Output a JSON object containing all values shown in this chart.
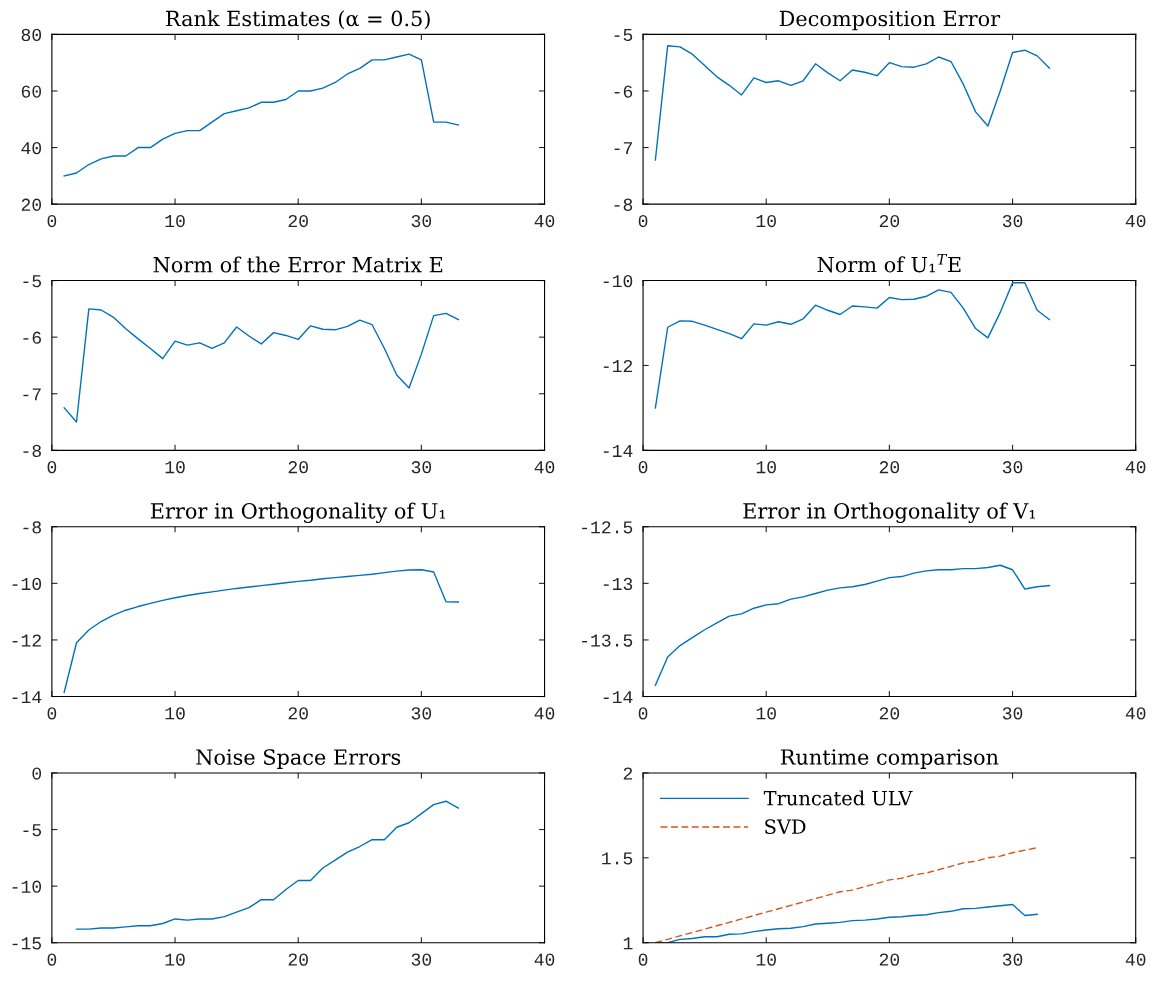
{
  "chart_data": [
    {
      "type": "line",
      "title": "Rank Estimates (α = 0.5)",
      "x": [
        1,
        2,
        3,
        4,
        5,
        6,
        7,
        8,
        9,
        10,
        11,
        12,
        13,
        14,
        15,
        16,
        17,
        18,
        19,
        20,
        21,
        22,
        23,
        24,
        25,
        26,
        27,
        28,
        29,
        30,
        31,
        32,
        33
      ],
      "xlim": [
        0,
        40
      ],
      "xticks": [
        0,
        10,
        20,
        30,
        40
      ],
      "ylim": [
        20,
        80
      ],
      "yticks": [
        20,
        40,
        60,
        80
      ],
      "grid": false,
      "series": [
        {
          "color": "#0072bd",
          "values": [
            30,
            31,
            34,
            36,
            37,
            37,
            40,
            40,
            43,
            45,
            46,
            46,
            49,
            52,
            53,
            54,
            56,
            56,
            57,
            60,
            60,
            61,
            63,
            66,
            68,
            71,
            71,
            72,
            73,
            71,
            49,
            49,
            48
          ]
        }
      ]
    },
    {
      "type": "line",
      "title": "Decomposition Error",
      "x": [
        1,
        2,
        3,
        4,
        5,
        6,
        7,
        8,
        9,
        10,
        11,
        12,
        13,
        14,
        15,
        16,
        17,
        18,
        19,
        20,
        21,
        22,
        23,
        24,
        25,
        26,
        27,
        28,
        29,
        30,
        31,
        32,
        33
      ],
      "xlim": [
        0,
        40
      ],
      "xticks": [
        0,
        10,
        20,
        30,
        40
      ],
      "ylim": [
        -8,
        -5
      ],
      "yticks": [
        -8,
        -7,
        -6,
        -5
      ],
      "grid": false,
      "series": [
        {
          "color": "#0072bd",
          "values": [
            -7.22,
            -5.2,
            -5.22,
            -5.35,
            -5.55,
            -5.75,
            -5.9,
            -6.07,
            -5.77,
            -5.85,
            -5.82,
            -5.9,
            -5.82,
            -5.52,
            -5.68,
            -5.82,
            -5.63,
            -5.67,
            -5.73,
            -5.5,
            -5.57,
            -5.58,
            -5.52,
            -5.4,
            -5.48,
            -5.88,
            -6.37,
            -6.62,
            -6.0,
            -5.32,
            -5.28,
            -5.38,
            -5.6
          ]
        }
      ]
    },
    {
      "type": "line",
      "title": "Norm of the Error Matrix E",
      "x": [
        1,
        2,
        3,
        4,
        5,
        6,
        7,
        8,
        9,
        10,
        11,
        12,
        13,
        14,
        15,
        16,
        17,
        18,
        19,
        20,
        21,
        22,
        23,
        24,
        25,
        26,
        27,
        28,
        29,
        30,
        31,
        32,
        33
      ],
      "xlim": [
        0,
        40
      ],
      "xticks": [
        0,
        10,
        20,
        30,
        40
      ],
      "ylim": [
        -8,
        -5
      ],
      "yticks": [
        -8,
        -7,
        -6,
        -5
      ],
      "grid": false,
      "series": [
        {
          "color": "#0072bd",
          "values": [
            -7.25,
            -7.5,
            -5.5,
            -5.52,
            -5.65,
            -5.85,
            -6.03,
            -6.2,
            -6.38,
            -6.07,
            -6.14,
            -6.1,
            -6.2,
            -6.1,
            -5.82,
            -5.98,
            -6.12,
            -5.92,
            -5.97,
            -6.04,
            -5.8,
            -5.86,
            -5.87,
            -5.81,
            -5.7,
            -5.78,
            -6.2,
            -6.67,
            -6.9,
            -6.3,
            -5.62,
            -5.58,
            -5.69
          ]
        }
      ]
    },
    {
      "type": "line",
      "title": "Norm of U₁$^{T}$E",
      "x": [
        1,
        2,
        3,
        4,
        5,
        6,
        7,
        8,
        9,
        10,
        11,
        12,
        13,
        14,
        15,
        16,
        17,
        18,
        19,
        20,
        21,
        22,
        23,
        24,
        25,
        26,
        27,
        28,
        29,
        30,
        31,
        32,
        33
      ],
      "xlim": [
        0,
        40
      ],
      "xticks": [
        0,
        10,
        20,
        30,
        40
      ],
      "ylim": [
        -14,
        -10
      ],
      "yticks": [
        -14,
        -12,
        -10
      ],
      "grid": false,
      "series": [
        {
          "color": "#0072bd",
          "values": [
            -13.0,
            -11.1,
            -10.95,
            -10.96,
            -11.05,
            -11.15,
            -11.25,
            -11.37,
            -11.02,
            -11.05,
            -10.97,
            -11.03,
            -10.9,
            -10.58,
            -10.7,
            -10.8,
            -10.6,
            -10.62,
            -10.65,
            -10.4,
            -10.45,
            -10.44,
            -10.37,
            -10.22,
            -10.28,
            -10.65,
            -11.13,
            -11.35,
            -10.75,
            -10.05,
            -10.05,
            -10.7,
            -10.92
          ]
        }
      ]
    },
    {
      "type": "line",
      "title": "Error in Orthogonality of U₁",
      "x": [
        1,
        2,
        3,
        4,
        5,
        6,
        7,
        8,
        9,
        10,
        11,
        12,
        13,
        14,
        15,
        16,
        17,
        18,
        19,
        20,
        21,
        22,
        23,
        24,
        25,
        26,
        27,
        28,
        29,
        30,
        31,
        32,
        33
      ],
      "xlim": [
        0,
        40
      ],
      "xticks": [
        0,
        10,
        20,
        30,
        40
      ],
      "ylim": [
        -14,
        -8
      ],
      "yticks": [
        -14,
        -12,
        -10,
        -8
      ],
      "grid": false,
      "series": [
        {
          "color": "#0072bd",
          "values": [
            -13.85,
            -12.1,
            -11.65,
            -11.35,
            -11.12,
            -10.95,
            -10.82,
            -10.71,
            -10.6,
            -10.51,
            -10.43,
            -10.36,
            -10.3,
            -10.24,
            -10.18,
            -10.13,
            -10.08,
            -10.03,
            -9.98,
            -9.93,
            -9.89,
            -9.84,
            -9.8,
            -9.76,
            -9.72,
            -9.68,
            -9.62,
            -9.57,
            -9.53,
            -9.52,
            -9.6,
            -10.65,
            -10.66
          ]
        }
      ]
    },
    {
      "type": "line",
      "title": "Error in Orthogonality of V₁",
      "x": [
        1,
        2,
        3,
        4,
        5,
        6,
        7,
        8,
        9,
        10,
        11,
        12,
        13,
        14,
        15,
        16,
        17,
        18,
        19,
        20,
        21,
        22,
        23,
        24,
        25,
        26,
        27,
        28,
        29,
        30,
        31,
        32,
        33
      ],
      "xlim": [
        0,
        40
      ],
      "xticks": [
        0,
        10,
        20,
        30,
        40
      ],
      "ylim": [
        -14,
        -12.5
      ],
      "yticks": [
        -14,
        -13.5,
        -13,
        -12.5
      ],
      "grid": false,
      "series": [
        {
          "color": "#0072bd",
          "values": [
            -13.9,
            -13.65,
            -13.55,
            -13.48,
            -13.41,
            -13.35,
            -13.29,
            -13.27,
            -13.22,
            -13.19,
            -13.18,
            -13.14,
            -13.12,
            -13.09,
            -13.06,
            -13.04,
            -13.03,
            -13.01,
            -12.98,
            -12.95,
            -12.94,
            -12.91,
            -12.89,
            -12.88,
            -12.88,
            -12.87,
            -12.87,
            -12.86,
            -12.84,
            -12.88,
            -13.05,
            -13.03,
            -13.02
          ]
        }
      ]
    },
    {
      "type": "line",
      "title": "Noise Space Errors",
      "x": [
        2,
        3,
        4,
        5,
        6,
        7,
        8,
        9,
        10,
        11,
        12,
        13,
        14,
        15,
        16,
        17,
        18,
        19,
        20,
        21,
        22,
        23,
        24,
        25,
        26,
        27,
        28,
        29,
        30,
        31,
        32,
        33
      ],
      "xlim": [
        0,
        40
      ],
      "xticks": [
        0,
        10,
        20,
        30,
        40
      ],
      "ylim": [
        -15,
        0
      ],
      "yticks": [
        -15,
        -10,
        -5,
        0
      ],
      "grid": false,
      "series": [
        {
          "color": "#0072bd",
          "values": [
            -13.8,
            -13.8,
            -13.7,
            -13.7,
            -13.6,
            -13.5,
            -13.5,
            -13.3,
            -12.9,
            -13.0,
            -12.9,
            -12.9,
            -12.7,
            -12.3,
            -11.9,
            -11.2,
            -11.2,
            -10.3,
            -9.5,
            -9.5,
            -8.4,
            -7.7,
            -7.0,
            -6.5,
            -5.9,
            -5.9,
            -4.8,
            -4.4,
            -3.6,
            -2.8,
            -2.5,
            -3.1
          ]
        }
      ]
    },
    {
      "type": "line",
      "title": "Runtime comparison",
      "x": [
        1,
        2,
        3,
        4,
        5,
        6,
        7,
        8,
        9,
        10,
        11,
        12,
        13,
        14,
        15,
        16,
        17,
        18,
        19,
        20,
        21,
        22,
        23,
        24,
        25,
        26,
        27,
        28,
        29,
        30,
        31,
        32
      ],
      "xlim": [
        0,
        40
      ],
      "xticks": [
        0,
        10,
        20,
        30,
        40
      ],
      "ylim": [
        1,
        2
      ],
      "yticks": [
        1,
        1.5,
        2
      ],
      "grid": false,
      "legend": "top left",
      "series": [
        {
          "name": "Truncated ULV",
          "color": "#0072bd",
          "line_style": "solid",
          "values": [
            1.0,
            1.0,
            1.02,
            1.025,
            1.035,
            1.035,
            1.05,
            1.052,
            1.065,
            1.075,
            1.082,
            1.085,
            1.095,
            1.11,
            1.115,
            1.12,
            1.13,
            1.133,
            1.14,
            1.15,
            1.153,
            1.16,
            1.165,
            1.177,
            1.185,
            1.2,
            1.202,
            1.21,
            1.218,
            1.225,
            1.16,
            1.167
          ]
        },
        {
          "name": "SVD",
          "color": "#d95319",
          "line_style": "dashed",
          "values": [
            1.0,
            1.02,
            1.04,
            1.06,
            1.08,
            1.1,
            1.12,
            1.14,
            1.16,
            1.18,
            1.2,
            1.22,
            1.24,
            1.26,
            1.28,
            1.3,
            1.31,
            1.33,
            1.35,
            1.37,
            1.38,
            1.4,
            1.41,
            1.43,
            1.45,
            1.47,
            1.48,
            1.5,
            1.51,
            1.53,
            1.545,
            1.56
          ]
        }
      ]
    }
  ]
}
